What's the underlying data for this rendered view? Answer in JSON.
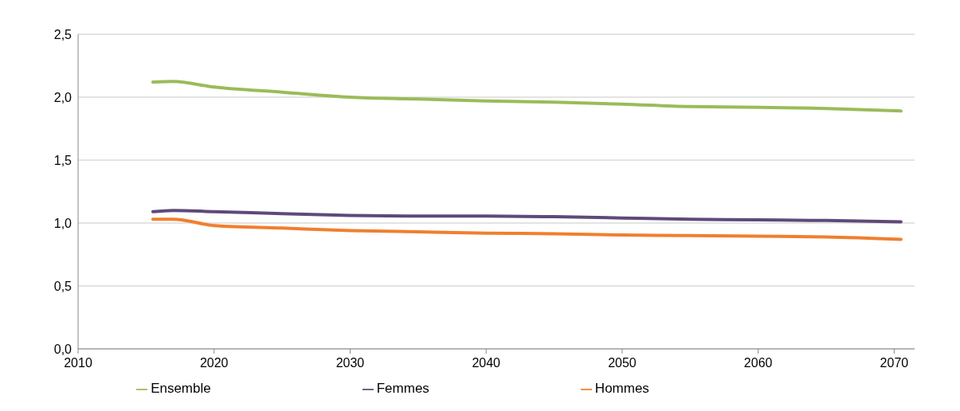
{
  "chart_data": {
    "type": "line",
    "x": [
      2015.5,
      2017,
      2020,
      2025,
      2030,
      2035,
      2040,
      2045,
      2050,
      2055,
      2060,
      2065,
      2070.5
    ],
    "series": [
      {
        "name": "Femmes",
        "color": "#5f497a",
        "values": [
          1.09,
          1.1,
          1.09,
          1.075,
          1.06,
          1.055,
          1.055,
          1.05,
          1.04,
          1.03,
          1.025,
          1.02,
          1.01
        ]
      },
      {
        "name": "Hommes",
        "color": "#f07f2e",
        "values": [
          1.03,
          1.03,
          0.98,
          0.96,
          0.94,
          0.93,
          0.92,
          0.915,
          0.905,
          0.9,
          0.895,
          0.89,
          0.87
        ]
      },
      {
        "name": "Ensemble",
        "color": "#9bbb59",
        "values": [
          2.12,
          2.125,
          2.08,
          2.04,
          2.0,
          1.985,
          1.97,
          1.96,
          1.945,
          1.925,
          1.92,
          1.91,
          1.89
        ]
      }
    ],
    "xlim": [
      2010,
      2071.5
    ],
    "xticks": [
      2010,
      2020,
      2030,
      2040,
      2050,
      2060,
      2070
    ],
    "ylim": [
      0,
      2.5
    ],
    "yticks": [
      {
        "value": 0,
        "label": "0,0"
      },
      {
        "value": 0.5,
        "label": "0,5"
      },
      {
        "value": 1,
        "label": "1,0"
      },
      {
        "value": 1.5,
        "label": "1,5"
      },
      {
        "value": 2,
        "label": "2,0"
      },
      {
        "value": 2.5,
        "label": "2,5"
      }
    ],
    "grid": "y",
    "legend": "bottom",
    "marker": "none",
    "line_style": "solid"
  }
}
